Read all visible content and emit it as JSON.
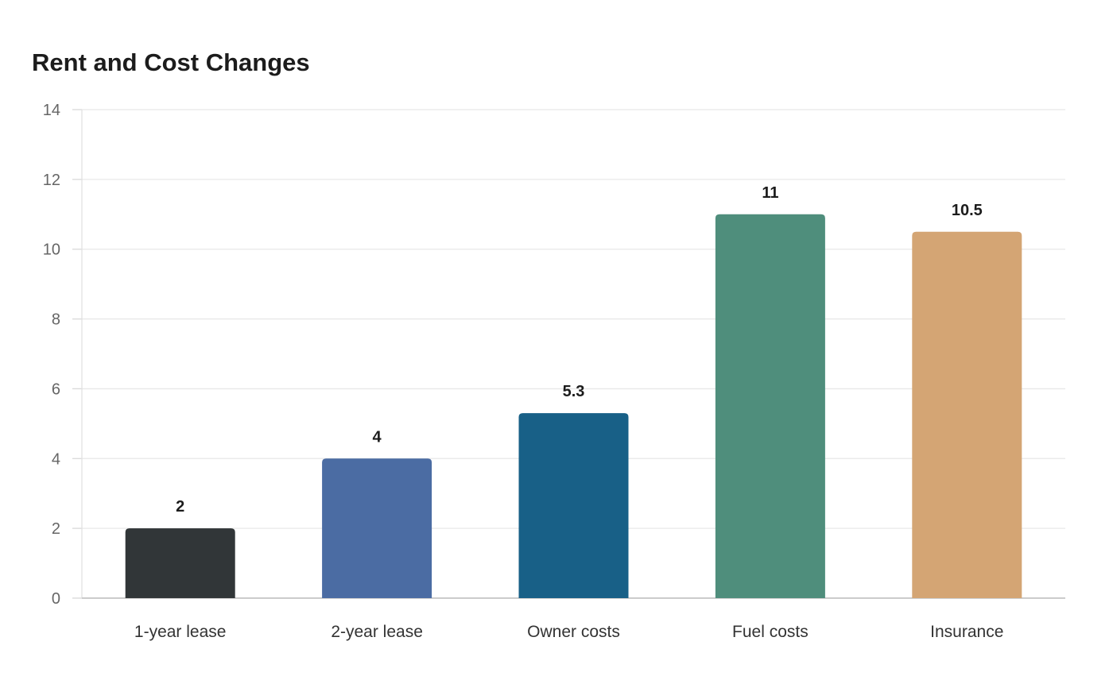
{
  "chart_data": {
    "type": "bar",
    "title": "Rent and Cost Changes",
    "xlabel": "",
    "ylabel": "",
    "categories": [
      "1-year lease",
      "2-year lease",
      "Owner costs",
      "Fuel costs",
      "Insurance"
    ],
    "values": [
      2,
      4,
      5.3,
      11,
      10.5
    ],
    "data_labels": [
      "2",
      "4",
      "5.3",
      "11",
      "10.5"
    ],
    "colors": [
      "#313638",
      "#4b6ca3",
      "#186087",
      "#4f8e7c",
      "#d4a574"
    ],
    "ylim": [
      0,
      14
    ],
    "yticks": [
      0,
      2,
      4,
      6,
      8,
      10,
      12,
      14
    ],
    "grid": true,
    "legend": "none"
  }
}
